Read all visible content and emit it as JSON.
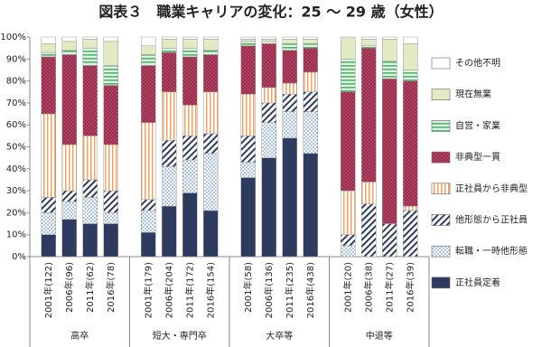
{
  "chart_data": {
    "type": "stacked-bar",
    "title": "図表３　職業キャリアの変化：25 ～ 29 歳（女性）",
    "groups": [
      "高卒",
      "短大・専門卒",
      "大卒等",
      "中退等"
    ],
    "categories": [
      "2001年(122)",
      "2006年(96)",
      "2011年(62)",
      "2016年(78)",
      "2001年(179)",
      "2006年(204)",
      "2011年(172)",
      "2016年(154)",
      "2001年(58)",
      "2006年(136)",
      "2011年(235)",
      "2016年(438)",
      "2001年(20)",
      "2006年(38)",
      "2011年(27)",
      "2016年(39)"
    ],
    "series": [
      {
        "name": "正社員定着",
        "color": "#2d3b5e",
        "pattern": "solid",
        "values": [
          10,
          17,
          15,
          15,
          11,
          23,
          29,
          21,
          36,
          45,
          54,
          47,
          0,
          0,
          0,
          0
        ]
      },
      {
        "name": "転職・一時他形態",
        "color": "#9dbde3",
        "pattern": "dots",
        "values": [
          10,
          8,
          12,
          5,
          10,
          18,
          15,
          26,
          7,
          16,
          12,
          19,
          5,
          0,
          0,
          0
        ]
      },
      {
        "name": "他形態から正社員",
        "color": "#2d3b5e",
        "pattern": "hatch",
        "values": [
          7,
          5,
          8,
          10,
          5,
          12,
          11,
          9,
          12,
          9,
          8,
          9,
          5,
          24,
          15,
          21
        ]
      },
      {
        "name": "正社員から非典型",
        "color": "#f0a060",
        "pattern": "vstripes",
        "values": [
          38,
          21,
          20,
          21,
          35,
          22,
          14,
          19,
          19,
          7,
          5,
          9,
          20,
          10,
          0,
          2
        ]
      },
      {
        "name": "非典型一貫",
        "color": "#9b2b4b",
        "pattern": "reddots",
        "values": [
          26,
          41,
          32,
          27,
          26,
          18,
          22,
          17,
          22,
          20,
          15,
          11,
          45,
          61,
          66,
          57
        ]
      },
      {
        "name": "自営・家業",
        "color": "#4fb36a",
        "pattern": "hstripes",
        "values": [
          2,
          2,
          8,
          9,
          5,
          2,
          4,
          2,
          2,
          1,
          3,
          2,
          15,
          1,
          8,
          5
        ]
      },
      {
        "name": "現在無業",
        "color": "#e2eac4",
        "pattern": "solid",
        "values": [
          4,
          4,
          4,
          11,
          4,
          4,
          4,
          5,
          1,
          1,
          2,
          2,
          10,
          3,
          10,
          12
        ]
      },
      {
        "name": "その他不明",
        "color": "#ffffff",
        "pattern": "solid",
        "values": [
          3,
          2,
          1,
          2,
          4,
          1,
          1,
          1,
          1,
          1,
          1,
          1,
          0,
          1,
          1,
          3
        ]
      }
    ],
    "ylim": [
      0,
      100
    ],
    "yticks": [
      {
        "value": 0,
        "label": "0%"
      },
      {
        "value": 10,
        "label": "10%"
      },
      {
        "value": 20,
        "label": "20%"
      },
      {
        "value": 30,
        "label": "30%"
      },
      {
        "value": 40,
        "label": "40%"
      },
      {
        "value": 50,
        "label": "50%"
      },
      {
        "value": 60,
        "label": "60%"
      },
      {
        "value": 70,
        "label": "70%"
      },
      {
        "value": 80,
        "label": "80%"
      },
      {
        "value": 90,
        "label": "90%"
      },
      {
        "value": 100,
        "label": "100%"
      }
    ],
    "grid": false
  }
}
